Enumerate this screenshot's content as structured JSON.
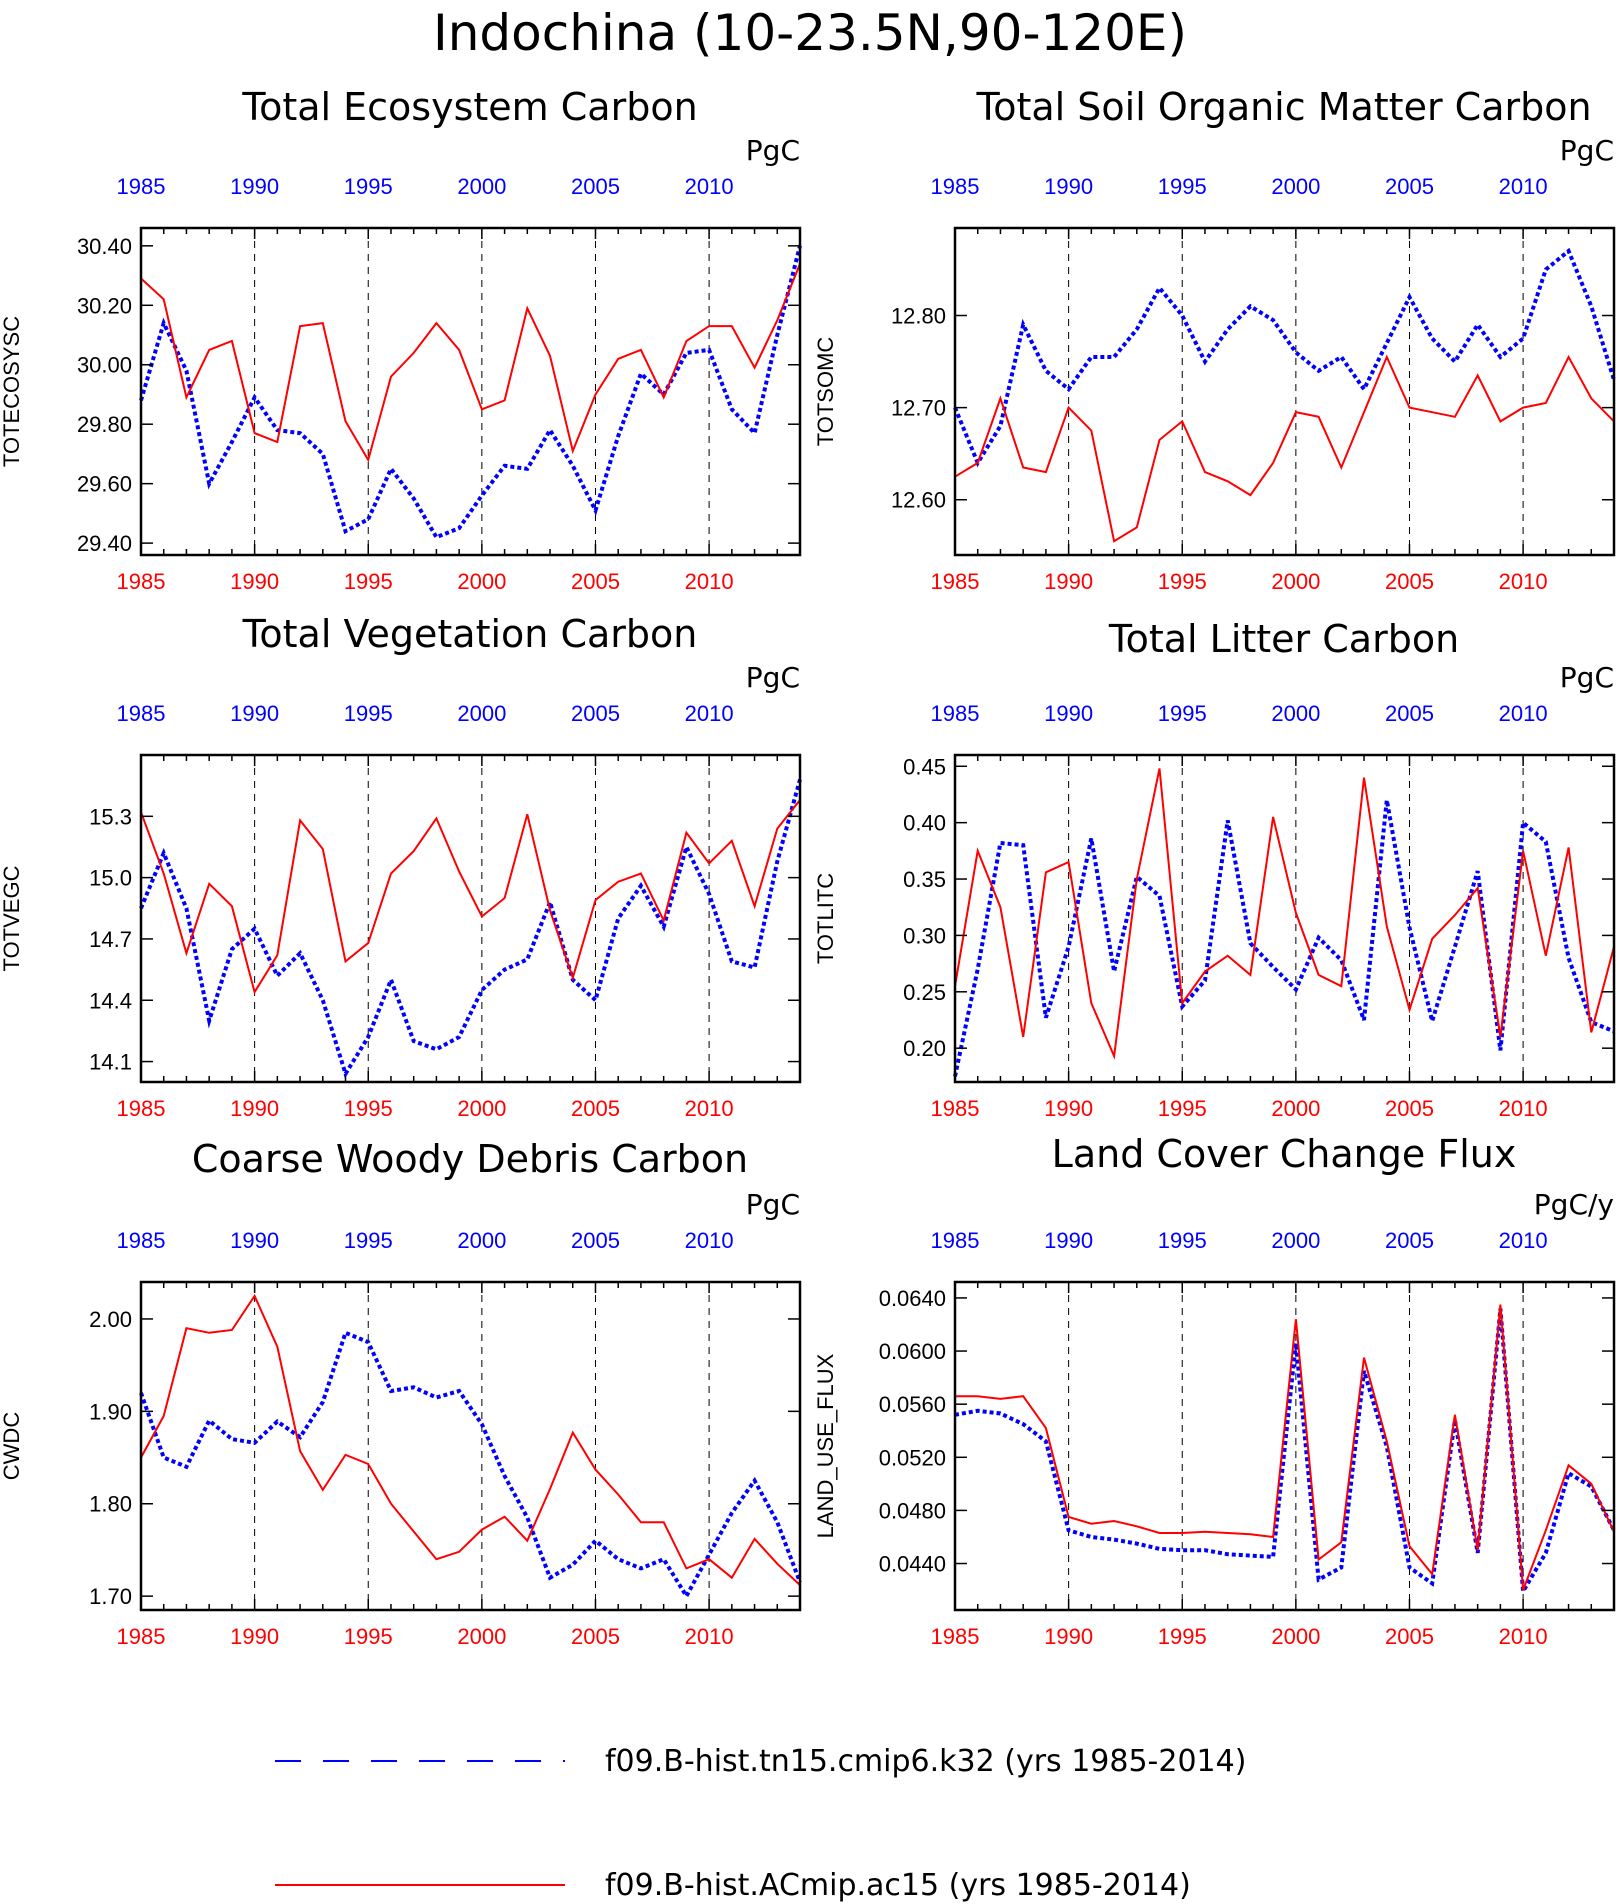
{
  "figure_title": "Indochina (10-23.5N,90-120E)",
  "colors": {
    "series_a": "#0000ff",
    "series_b": "#ff0000",
    "axis": "#000000"
  },
  "legend": {
    "entries": [
      {
        "label": "f09.B-hist.tn15.cmip6.k32 (yrs 1985-2014)",
        "color": "#0000ff",
        "style": "dashed"
      },
      {
        "label": "f09.B-hist.ACmip.ac15 (yrs 1985-2014)",
        "color": "#ff0000",
        "style": "solid"
      }
    ]
  },
  "chart_data": [
    {
      "type": "line",
      "title": "Total Ecosystem Carbon",
      "ylabel": "TOTECOSYSC",
      "units": "PgC",
      "xlim": [
        1985,
        2014
      ],
      "ylim": [
        29.36,
        30.46
      ],
      "yticks": [
        "29.40",
        "29.60",
        "29.80",
        "30.00",
        "30.20",
        "30.40"
      ],
      "xticks": [
        1985,
        1990,
        1995,
        2000,
        2005,
        2010
      ],
      "series": [
        {
          "color": "#0000ff",
          "style": "dashed",
          "values": [
            29.88,
            30.14,
            29.98,
            29.6,
            29.74,
            29.89,
            29.78,
            29.77,
            29.7,
            29.44,
            29.48,
            29.65,
            29.55,
            29.42,
            29.45,
            29.56,
            29.66,
            29.65,
            29.78,
            29.66,
            29.51,
            29.76,
            29.97,
            29.9,
            30.04,
            30.05,
            29.85,
            29.77,
            30.1,
            30.4
          ]
        },
        {
          "color": "#ff0000",
          "style": "solid",
          "values": [
            30.29,
            30.22,
            29.89,
            30.05,
            30.08,
            29.77,
            29.74,
            30.13,
            30.14,
            29.81,
            29.68,
            29.96,
            30.04,
            30.14,
            30.05,
            29.85,
            29.88,
            30.19,
            30.03,
            29.71,
            29.9,
            30.02,
            30.05,
            29.89,
            30.08,
            30.13,
            30.13,
            29.99,
            30.15,
            30.34
          ]
        }
      ]
    },
    {
      "type": "line",
      "title": "Total Soil Organic Matter Carbon",
      "ylabel": "TOTSOMC",
      "units": "PgC",
      "xlim": [
        1985,
        2014
      ],
      "ylim": [
        12.54,
        12.895
      ],
      "yticks": [
        "12.60",
        "12.70",
        "12.80"
      ],
      "xticks": [
        1985,
        1990,
        1995,
        2000,
        2005,
        2010
      ],
      "series": [
        {
          "color": "#0000ff",
          "style": "dashed",
          "values": [
            12.7,
            12.64,
            12.68,
            12.79,
            12.74,
            12.72,
            12.755,
            12.755,
            12.785,
            12.83,
            12.8,
            12.75,
            12.785,
            12.81,
            12.795,
            12.76,
            12.74,
            12.755,
            12.72,
            12.77,
            12.82,
            12.775,
            12.75,
            12.79,
            12.755,
            12.775,
            12.85,
            12.87,
            12.81,
            12.73
          ]
        },
        {
          "color": "#ff0000",
          "style": "solid",
          "values": [
            12.625,
            12.64,
            12.71,
            12.635,
            12.63,
            12.7,
            12.675,
            12.555,
            12.57,
            12.665,
            12.685,
            12.63,
            12.62,
            12.605,
            12.64,
            12.695,
            12.69,
            12.635,
            12.695,
            12.755,
            12.7,
            12.695,
            12.69,
            12.735,
            12.685,
            12.7,
            12.705,
            12.755,
            12.71,
            12.685
          ]
        }
      ]
    },
    {
      "type": "line",
      "title": "Total Vegetation Carbon",
      "ylabel": "TOTVEGC",
      "units": "PgC",
      "xlim": [
        1985,
        2014
      ],
      "ylim": [
        14.0,
        15.6
      ],
      "yticks": [
        "14.1",
        "14.4",
        "14.7",
        "15.0",
        "15.3"
      ],
      "xticks": [
        1985,
        1990,
        1995,
        2000,
        2005,
        2010
      ],
      "series": [
        {
          "color": "#0000ff",
          "style": "dashed",
          "values": [
            14.85,
            15.12,
            14.85,
            14.3,
            14.65,
            14.75,
            14.52,
            14.63,
            14.4,
            14.04,
            14.22,
            14.5,
            14.2,
            14.16,
            14.22,
            14.45,
            14.55,
            14.6,
            14.88,
            14.5,
            14.4,
            14.8,
            14.96,
            14.76,
            15.15,
            14.92,
            14.59,
            14.56,
            15.08,
            15.48
          ]
        },
        {
          "color": "#ff0000",
          "style": "solid",
          "values": [
            15.32,
            15.02,
            14.63,
            14.97,
            14.86,
            14.44,
            14.62,
            15.28,
            15.14,
            14.59,
            14.68,
            15.02,
            15.13,
            15.29,
            15.03,
            14.81,
            14.9,
            15.31,
            14.84,
            14.51,
            14.89,
            14.98,
            15.02,
            14.79,
            15.22,
            15.07,
            15.18,
            14.86,
            15.24,
            15.38
          ]
        }
      ]
    },
    {
      "type": "line",
      "title": "Total Litter Carbon",
      "ylabel": "TOTLITC",
      "units": "PgC",
      "xlim": [
        1985,
        2014
      ],
      "ylim": [
        0.17,
        0.46
      ],
      "yticks": [
        "0.20",
        "0.25",
        "0.30",
        "0.35",
        "0.40",
        "0.45"
      ],
      "xticks": [
        1985,
        1990,
        1995,
        2000,
        2005,
        2010
      ],
      "series": [
        {
          "color": "#0000ff",
          "style": "dashed",
          "values": [
            0.175,
            0.27,
            0.382,
            0.38,
            0.227,
            0.29,
            0.386,
            0.268,
            0.352,
            0.335,
            0.237,
            0.26,
            0.402,
            0.293,
            0.272,
            0.252,
            0.298,
            0.278,
            0.225,
            0.42,
            0.307,
            0.224,
            0.29,
            0.357,
            0.198,
            0.4,
            0.383,
            0.28,
            0.223,
            0.215
          ]
        },
        {
          "color": "#ff0000",
          "style": "solid",
          "values": [
            0.255,
            0.375,
            0.325,
            0.21,
            0.356,
            0.365,
            0.24,
            0.193,
            0.35,
            0.448,
            0.24,
            0.268,
            0.282,
            0.265,
            0.405,
            0.32,
            0.265,
            0.255,
            0.44,
            0.308,
            0.234,
            0.297,
            0.318,
            0.342,
            0.21,
            0.375,
            0.282,
            0.378,
            0.214,
            0.29
          ]
        }
      ]
    },
    {
      "type": "line",
      "title": "Coarse Woody Debris Carbon",
      "ylabel": "CWDC",
      "units": "PgC",
      "xlim": [
        1985,
        2014
      ],
      "ylim": [
        1.685,
        2.04
      ],
      "yticks": [
        "1.70",
        "1.80",
        "1.90",
        "2.00"
      ],
      "xticks": [
        1985,
        1990,
        1995,
        2000,
        2005,
        2010
      ],
      "series": [
        {
          "color": "#0000ff",
          "style": "dashed",
          "values": [
            1.92,
            1.85,
            1.84,
            1.89,
            1.87,
            1.866,
            1.889,
            1.872,
            1.91,
            1.985,
            1.975,
            1.922,
            1.926,
            1.915,
            1.922,
            1.886,
            1.83,
            1.785,
            1.72,
            1.734,
            1.76,
            1.74,
            1.73,
            1.74,
            1.7,
            1.745,
            1.79,
            1.825,
            1.78,
            1.715
          ]
        },
        {
          "color": "#ff0000",
          "style": "solid",
          "values": [
            1.85,
            1.895,
            1.99,
            1.985,
            1.988,
            2.025,
            1.97,
            1.857,
            1.815,
            1.853,
            1.843,
            1.8,
            1.77,
            1.74,
            1.748,
            1.772,
            1.786,
            1.76,
            1.816,
            1.877,
            1.837,
            1.81,
            1.78,
            1.78,
            1.73,
            1.74,
            1.72,
            1.762,
            1.735,
            1.712
          ]
        }
      ]
    },
    {
      "type": "line",
      "title": "Land Cover Change Flux",
      "ylabel": "LAND_USE_FLUX",
      "units": "PgC/y",
      "xlim": [
        1985,
        2014
      ],
      "ylim": [
        0.0405,
        0.0652
      ],
      "yticks": [
        "0.0440",
        "0.0480",
        "0.0520",
        "0.0560",
        "0.0600",
        "0.0640"
      ],
      "xticks": [
        1985,
        1990,
        1995,
        2000,
        2005,
        2010
      ],
      "series": [
        {
          "color": "#0000ff",
          "style": "dashed",
          "values": [
            0.0552,
            0.0555,
            0.0553,
            0.0545,
            0.0532,
            0.0465,
            0.046,
            0.0458,
            0.0455,
            0.0451,
            0.045,
            0.045,
            0.0447,
            0.0446,
            0.0445,
            0.0606,
            0.0428,
            0.0437,
            0.0585,
            0.0528,
            0.0437,
            0.0425,
            0.0548,
            0.0448,
            0.0632,
            0.0419,
            0.0448,
            0.0508,
            0.0498,
            0.0465
          ]
        },
        {
          "color": "#ff0000",
          "style": "solid",
          "values": [
            0.0566,
            0.0566,
            0.0564,
            0.0566,
            0.0542,
            0.0475,
            0.047,
            0.0472,
            0.0468,
            0.0463,
            0.0463,
            0.0464,
            0.0463,
            0.0462,
            0.046,
            0.0624,
            0.0443,
            0.0456,
            0.0595,
            0.0532,
            0.0453,
            0.0432,
            0.0552,
            0.045,
            0.0635,
            0.042,
            0.0465,
            0.0514,
            0.05,
            0.0464
          ]
        }
      ]
    }
  ]
}
